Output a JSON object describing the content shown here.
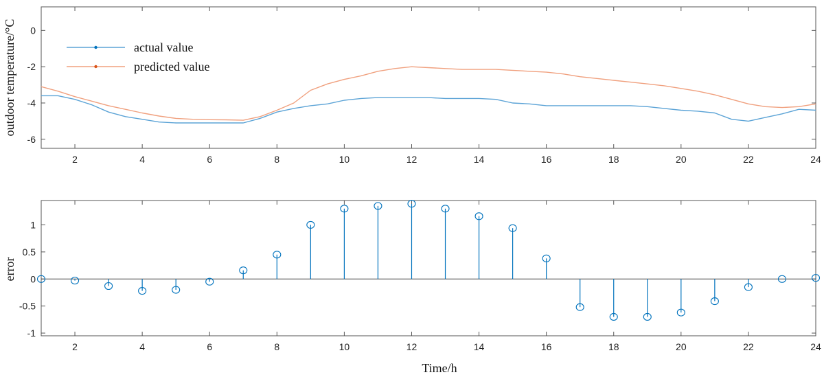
{
  "chart_data": [
    {
      "type": "line",
      "ylabel": "outdoor temperature/°C",
      "xlim": [
        1,
        24
      ],
      "ylim": [
        -6.5,
        1.3
      ],
      "xticks": [
        2,
        4,
        6,
        8,
        10,
        12,
        14,
        16,
        18,
        20,
        22,
        24
      ],
      "yticks": [
        0,
        -2,
        -4,
        -6
      ],
      "legend_position": "top-left",
      "series": [
        {
          "name": "actual value",
          "color": "#0072BD",
          "x": [
            1,
            1.5,
            2,
            2.5,
            3,
            3.5,
            4,
            4.5,
            5,
            5.5,
            6,
            6.5,
            7,
            7.5,
            8,
            8.5,
            9,
            9.5,
            10,
            10.5,
            11,
            11.5,
            12,
            12.5,
            13,
            13.5,
            14,
            14.5,
            15,
            15.5,
            16,
            16.5,
            17,
            17.5,
            18,
            18.5,
            19,
            19.5,
            20,
            20.5,
            21,
            21.5,
            22,
            22.5,
            23,
            23.5,
            24
          ],
          "values": [
            -3.6,
            -3.6,
            -3.8,
            -4.1,
            -4.5,
            -4.75,
            -4.9,
            -5.05,
            -5.1,
            -5.1,
            -5.1,
            -5.1,
            -5.1,
            -4.85,
            -4.5,
            -4.3,
            -4.15,
            -4.05,
            -3.85,
            -3.75,
            -3.7,
            -3.7,
            -3.7,
            -3.7,
            -3.75,
            -3.75,
            -3.75,
            -3.8,
            -4.0,
            -4.05,
            -4.15,
            -4.15,
            -4.15,
            -4.15,
            -4.15,
            -4.15,
            -4.2,
            -4.3,
            -4.4,
            -4.45,
            -4.55,
            -4.9,
            -5.0,
            -4.8,
            -4.6,
            -4.35,
            -4.4
          ]
        },
        {
          "name": "predicted value",
          "color": "#D95319",
          "x": [
            1,
            1.5,
            2,
            2.5,
            3,
            3.5,
            4,
            4.5,
            5,
            5.5,
            6,
            6.5,
            7,
            7.5,
            8,
            8.5,
            9,
            9.5,
            10,
            10.5,
            11,
            11.5,
            12,
            12.5,
            13,
            13.5,
            14,
            14.5,
            15,
            15.5,
            16,
            16.5,
            17,
            17.5,
            18,
            18.5,
            19,
            19.5,
            20,
            20.5,
            21,
            21.5,
            22,
            22.5,
            23,
            23.5,
            24
          ],
          "values": [
            -3.1,
            -3.35,
            -3.65,
            -3.9,
            -4.15,
            -4.35,
            -4.55,
            -4.72,
            -4.85,
            -4.9,
            -4.92,
            -4.93,
            -4.95,
            -4.75,
            -4.4,
            -4.0,
            -3.3,
            -2.95,
            -2.7,
            -2.5,
            -2.25,
            -2.1,
            -2.0,
            -2.05,
            -2.1,
            -2.15,
            -2.15,
            -2.15,
            -2.2,
            -2.25,
            -2.3,
            -2.4,
            -2.55,
            -2.65,
            -2.75,
            -2.85,
            -2.95,
            -3.05,
            -3.2,
            -3.35,
            -3.55,
            -3.8,
            -4.05,
            -4.2,
            -4.25,
            -4.2,
            -4.05
          ]
        }
      ]
    },
    {
      "type": "stem",
      "ylabel": "error",
      "xlabel": "Time/h",
      "xlim": [
        1,
        24
      ],
      "ylim": [
        -1.05,
        1.45
      ],
      "xticks": [
        2,
        4,
        6,
        8,
        10,
        12,
        14,
        16,
        18,
        20,
        22,
        24
      ],
      "yticks": [
        1,
        0.5,
        0,
        -0.5,
        -1
      ],
      "color": "#0072BD",
      "x": [
        1,
        2,
        3,
        4,
        5,
        6,
        7,
        8,
        9,
        10,
        11,
        12,
        13,
        14,
        15,
        16,
        17,
        18,
        19,
        20,
        21,
        22,
        23,
        24
      ],
      "values": [
        0.0,
        -0.03,
        -0.13,
        -0.22,
        -0.2,
        -0.05,
        0.16,
        0.45,
        1.0,
        1.3,
        1.35,
        1.39,
        1.3,
        1.16,
        0.94,
        0.38,
        -0.52,
        -0.7,
        -0.7,
        -0.62,
        -0.41,
        -0.15,
        0.0,
        0.02
      ]
    }
  ]
}
